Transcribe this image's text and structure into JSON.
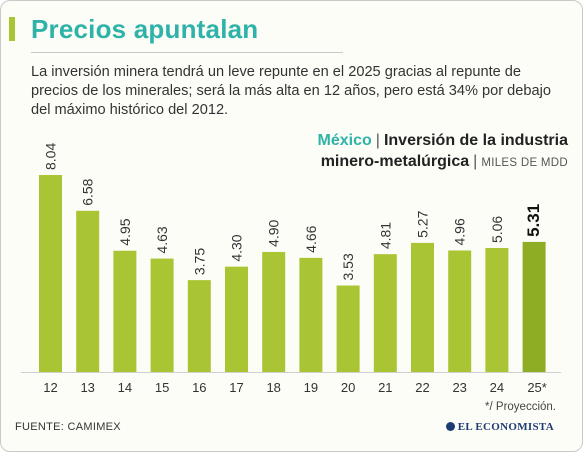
{
  "header": {
    "title": "Precios apuntalan",
    "description": "La inversión minera tendrá un leve repunte en el 2025 gracias al repunte de precios de los minerales; será la más alta en 12 años, pero está 34% por debajo del máximo histórico del 2012."
  },
  "chart_data": {
    "type": "bar",
    "title_country": "México",
    "title_line1": "Inversión de la industria",
    "title_line2": "minero-metalúrgica",
    "unit": "MILES DE MDD",
    "categories": [
      "12",
      "13",
      "14",
      "15",
      "16",
      "17",
      "18",
      "19",
      "20",
      "21",
      "22",
      "23",
      "24",
      "25*"
    ],
    "values": [
      8.04,
      6.58,
      4.95,
      4.63,
      3.75,
      4.3,
      4.9,
      4.66,
      3.53,
      4.81,
      5.27,
      4.96,
      5.06,
      5.31
    ],
    "labels": [
      "8.04",
      "6.58",
      "4.95",
      "4.63",
      "3.75",
      "4.30",
      "4.90",
      "4.66",
      "3.53",
      "4.81",
      "5.27",
      "4.96",
      "5.06",
      "5.31"
    ],
    "highlight_index": 13,
    "ylim": [
      0,
      9
    ],
    "grid": false,
    "bar_color": "#a9c533",
    "highlight_bar_color": "#8ead25"
  },
  "footer": {
    "note": "*/ Proyección.",
    "source": "FUENTE: CAMIMEX",
    "brand": "EL ECONOMISTA"
  },
  "colors": {
    "accent_teal": "#2fb3a8",
    "bar": "#a9c533"
  }
}
